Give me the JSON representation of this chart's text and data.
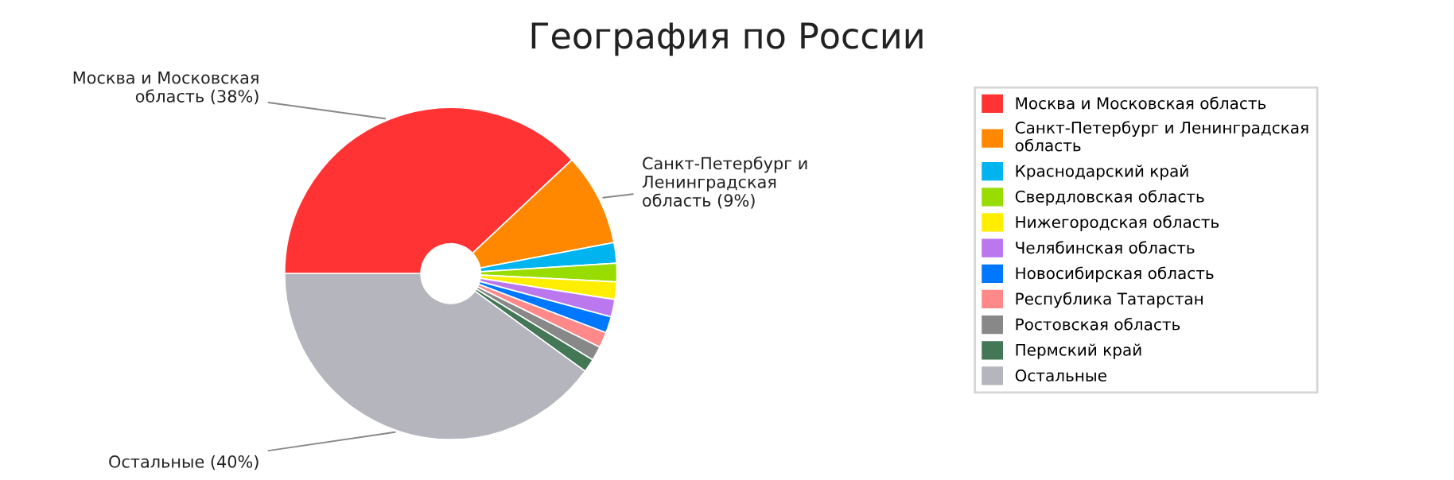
{
  "chart_data": {
    "type": "donut",
    "title": "География по России",
    "categories": [
      "Москва и Московская область",
      "Санкт-Петербург и Ленинградская\nобласть",
      "Краснодарский край",
      "Свердловская область",
      "Нижегородская область",
      "Челябинская область",
      "Новосибирская область",
      "Республика Татарстан",
      "Ростовская область",
      "Пермский край",
      "Остальные"
    ],
    "values": [
      38,
      9,
      2.0,
      1.8,
      1.7,
      1.7,
      1.6,
      1.5,
      1.4,
      1.3,
      40
    ],
    "colors": [
      "#ff3333",
      "#ff8800",
      "#00b4f0",
      "#99dd00",
      "#ffee00",
      "#bb77ee",
      "#0077ff",
      "#ff8888",
      "#888888",
      "#447755",
      "#b5b5bd"
    ],
    "value_labels": [
      "Москва и Московская\nобласть (38%)",
      "Санкт-Петербург и\nЛенинградская\nобласть (9%)",
      null,
      null,
      null,
      null,
      null,
      null,
      null,
      null,
      "Остальные (40%)"
    ],
    "legend": "right"
  }
}
